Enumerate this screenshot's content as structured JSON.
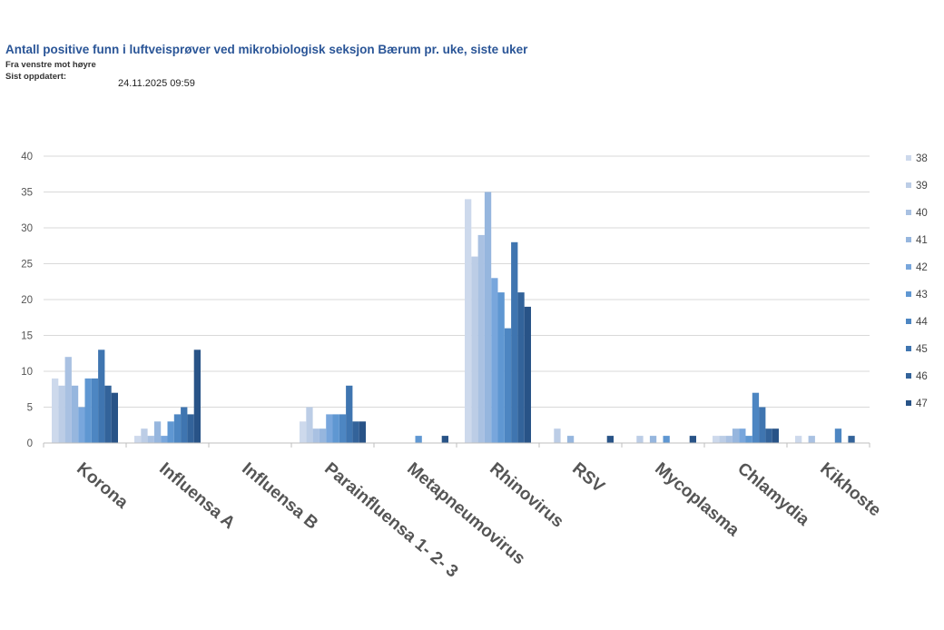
{
  "header": {
    "title": "Antall positive funn i luftveisprøver ved mikrobiologisk seksjon Bærum pr. uke, siste uker",
    "subtitle": "Fra venstre mot høyre",
    "updated_label": "Sist oppdatert:",
    "updated_value": "24.11.2025 09:59"
  },
  "chart_data": {
    "type": "bar",
    "title": "Antall positive funn i luftveisprøver ved mikrobiologisk seksjon Bærum pr. uke, siste uker",
    "xlabel": "",
    "ylabel": "",
    "ylim": [
      0,
      40
    ],
    "yticks": [
      0,
      5,
      10,
      15,
      20,
      25,
      30,
      35,
      40
    ],
    "grid": true,
    "legend_position": "right",
    "categories": [
      "Korona",
      "Influensa A",
      "Influensa B",
      "Parainfluensa 1- 2- 3",
      "Metapneumovirus",
      "Rhinovirus",
      "RSV",
      "Mycoplasma",
      "Chlamydia",
      "Kikhoste"
    ],
    "series": [
      {
        "name": "38",
        "color": "#cdd9ec",
        "values": [
          9,
          1,
          0,
          3,
          0,
          34,
          0,
          0,
          1,
          1
        ]
      },
      {
        "name": "39",
        "color": "#bccde6",
        "values": [
          8,
          2,
          0,
          5,
          0,
          26,
          2,
          1,
          1,
          0
        ]
      },
      {
        "name": "40",
        "color": "#a9c1e2",
        "values": [
          12,
          1,
          0,
          2,
          0,
          29,
          0,
          0,
          1,
          1
        ]
      },
      {
        "name": "41",
        "color": "#96b6de",
        "values": [
          8,
          3,
          0,
          2,
          0,
          35,
          1,
          1,
          2,
          0
        ]
      },
      {
        "name": "42",
        "color": "#78a6dc",
        "values": [
          5,
          1,
          0,
          4,
          0,
          23,
          0,
          0,
          2,
          0
        ]
      },
      {
        "name": "43",
        "color": "#5f97d2",
        "values": [
          9,
          3,
          0,
          4,
          1,
          21,
          0,
          1,
          1,
          0
        ]
      },
      {
        "name": "44",
        "color": "#4d86c2",
        "values": [
          9,
          4,
          0,
          4,
          0,
          16,
          0,
          0,
          7,
          2
        ]
      },
      {
        "name": "45",
        "color": "#3f75b0",
        "values": [
          13,
          5,
          0,
          8,
          0,
          28,
          0,
          0,
          5,
          0
        ]
      },
      {
        "name": "46",
        "color": "#33639a",
        "values": [
          8,
          4,
          0,
          3,
          0,
          21,
          0,
          0,
          2,
          1
        ]
      },
      {
        "name": "47",
        "color": "#285387",
        "values": [
          7,
          13,
          0,
          3,
          1,
          19,
          1,
          1,
          2,
          0
        ]
      }
    ]
  }
}
